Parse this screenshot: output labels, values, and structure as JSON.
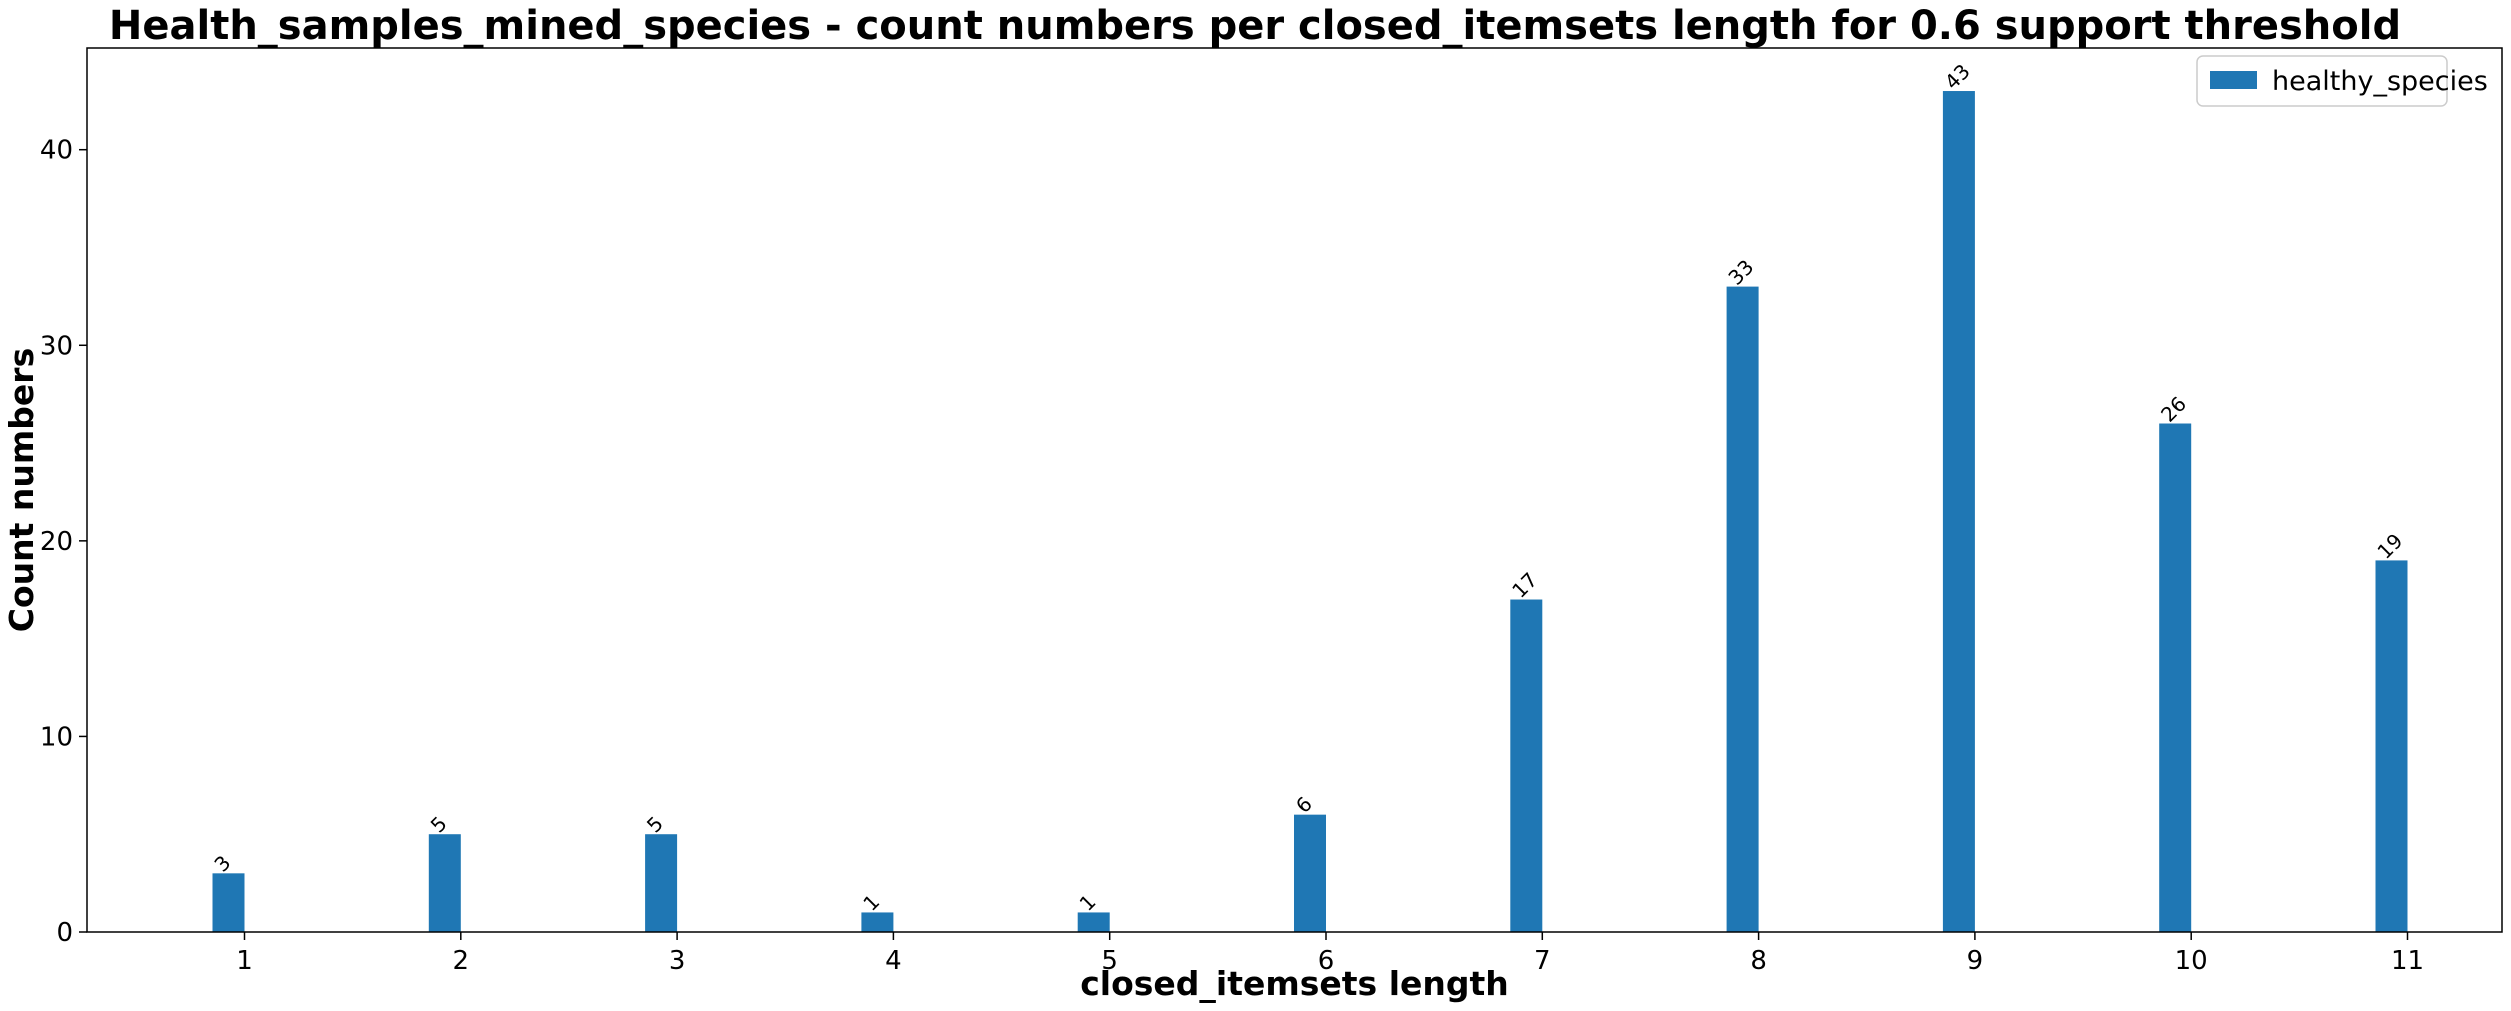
{
  "chart_data": {
    "type": "bar",
    "title": "Health_samples_mined_species - count numbers per closed_itemsets length for 0.6 support threshold",
    "xlabel": "closed_itemsets length",
    "ylabel": "Count numbers",
    "categories": [
      "1",
      "2",
      "3",
      "4",
      "5",
      "6",
      "7",
      "8",
      "9",
      "10",
      "11"
    ],
    "series": [
      {
        "name": "healthy_species",
        "values": [
          3,
          5,
          5,
          1,
          1,
          6,
          17,
          33,
          43,
          26,
          19
        ],
        "color": "#1f77b4"
      }
    ],
    "data_labels": [
      "3",
      "5",
      "5",
      "1",
      "1",
      "6",
      "17",
      "33",
      "43",
      "26",
      "19"
    ],
    "yticks": [
      0,
      10,
      20,
      30,
      40
    ],
    "ylim": [
      0,
      45.2
    ],
    "grid": false,
    "legend_position": "top-right"
  }
}
